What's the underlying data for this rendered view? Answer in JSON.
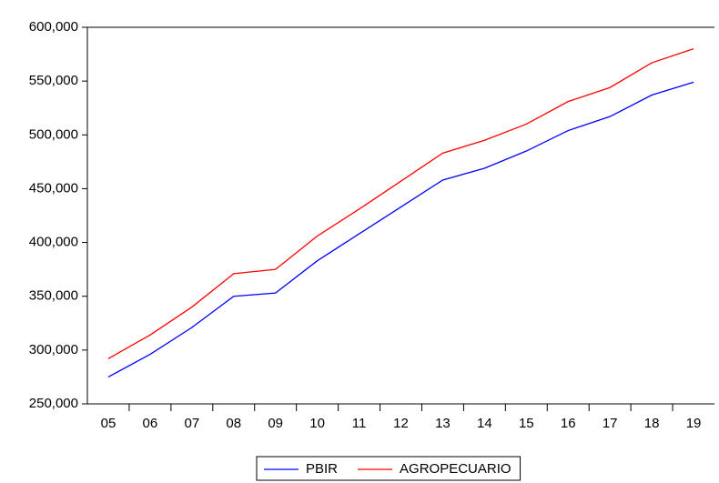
{
  "chart_data": {
    "type": "line",
    "categories": [
      "05",
      "06",
      "07",
      "08",
      "09",
      "10",
      "11",
      "12",
      "13",
      "14",
      "15",
      "16",
      "17",
      "18",
      "19"
    ],
    "series": [
      {
        "name": "PBIR",
        "color": "#0000ff",
        "values": [
          275000,
          296000,
          321000,
          350000,
          353000,
          383000,
          408000,
          433000,
          458000,
          469000,
          485000,
          504000,
          517000,
          537000,
          549000
        ]
      },
      {
        "name": "AGROPECUARIO",
        "color": "#ff0000",
        "values": [
          292000,
          314000,
          340000,
          371000,
          375000,
          406000,
          431000,
          457000,
          483000,
          495000,
          510000,
          531000,
          544000,
          567000,
          580000
        ]
      }
    ],
    "ylim": [
      250000,
      600000
    ],
    "yticks": [
      {
        "value": 250000,
        "label": "250,000"
      },
      {
        "value": 300000,
        "label": "300,000"
      },
      {
        "value": 350000,
        "label": "350,000"
      },
      {
        "value": 400000,
        "label": "400,000"
      },
      {
        "value": 450000,
        "label": "450,000"
      },
      {
        "value": 500000,
        "label": "500,000"
      },
      {
        "value": 550000,
        "label": "550,000"
      },
      {
        "value": 600000,
        "label": "600,000"
      }
    ],
    "legend": "bottom"
  }
}
